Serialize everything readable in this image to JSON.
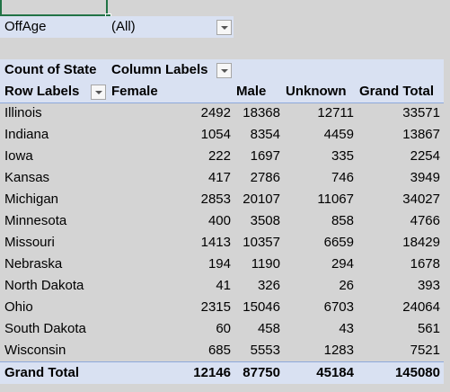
{
  "filter": {
    "label": "OffAge",
    "value": "(All)"
  },
  "pivot": {
    "corner_label": "Count of State",
    "column_labels": "Column Labels",
    "row_labels": "Row Labels",
    "columns": [
      "Female",
      "Male",
      "Unknown",
      "Grand Total"
    ],
    "rows": [
      {
        "label": "Illinois",
        "values": [
          "2492",
          "18368",
          "12711",
          "33571"
        ]
      },
      {
        "label": "Indiana",
        "values": [
          "1054",
          "8354",
          "4459",
          "13867"
        ]
      },
      {
        "label": "Iowa",
        "values": [
          "222",
          "1697",
          "335",
          "2254"
        ]
      },
      {
        "label": "Kansas",
        "values": [
          "417",
          "2786",
          "746",
          "3949"
        ]
      },
      {
        "label": "Michigan",
        "values": [
          "2853",
          "20107",
          "11067",
          "34027"
        ]
      },
      {
        "label": "Minnesota",
        "values": [
          "400",
          "3508",
          "858",
          "4766"
        ]
      },
      {
        "label": "Missouri",
        "values": [
          "1413",
          "10357",
          "6659",
          "18429"
        ]
      },
      {
        "label": "Nebraska",
        "values": [
          "194",
          "1190",
          "294",
          "1678"
        ]
      },
      {
        "label": "North Dakota",
        "values": [
          "41",
          "326",
          "26",
          "393"
        ]
      },
      {
        "label": "Ohio",
        "values": [
          "2315",
          "15046",
          "6703",
          "24064"
        ]
      },
      {
        "label": "South Dakota",
        "values": [
          "60",
          "458",
          "43",
          "561"
        ]
      },
      {
        "label": "Wisconsin",
        "values": [
          "685",
          "5553",
          "1283",
          "7521"
        ]
      }
    ],
    "grand_total": {
      "label": "Grand Total",
      "values": [
        "12146",
        "87750",
        "45184",
        "145080"
      ]
    }
  },
  "colors": {
    "header_fill": "#d9e1f2",
    "selection_border": "#217346",
    "gridline": "#d4d4d4"
  }
}
